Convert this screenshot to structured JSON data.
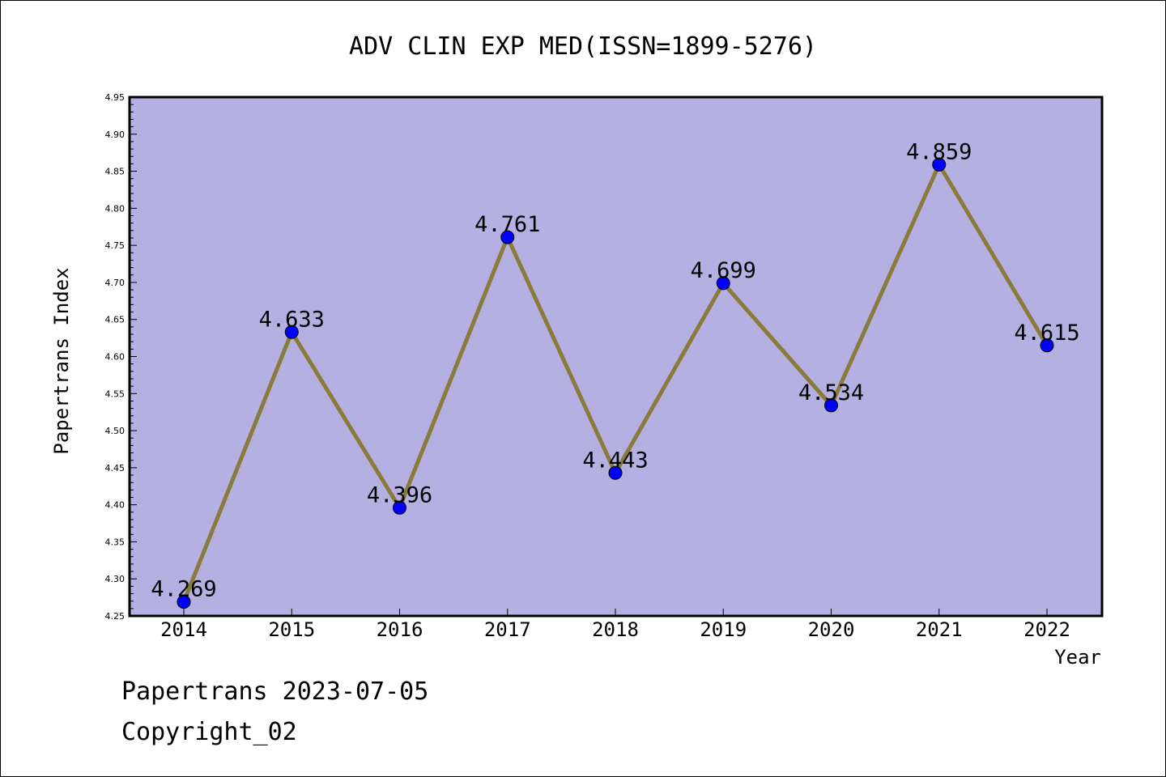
{
  "chart_data": {
    "type": "line",
    "title": "ADV CLIN EXP MED(ISSN=1899-5276)",
    "xlabel": "Year",
    "ylabel": "Papertrans Index",
    "categories": [
      "2014",
      "2015",
      "2016",
      "2017",
      "2018",
      "2019",
      "2020",
      "2021",
      "2022"
    ],
    "values": [
      4.269,
      4.633,
      4.396,
      4.761,
      4.443,
      4.699,
      4.534,
      4.859,
      4.615
    ],
    "data_labels": [
      "4.269",
      "4.633",
      "4.396",
      "4.761",
      "4.443",
      "4.699",
      "4.534",
      "4.859",
      "4.615"
    ],
    "ylim": [
      4.25,
      4.95
    ],
    "y_ticks": [
      "4.25",
      "4.30",
      "4.35",
      "4.40",
      "4.45",
      "4.50",
      "4.55",
      "4.60",
      "4.65",
      "4.70",
      "4.75",
      "4.80",
      "4.85",
      "4.90",
      "4.95"
    ],
    "grid": false,
    "legend": "none"
  },
  "footer": {
    "line1": "Papertrans 2023-07-05",
    "line2": "Copyright_02"
  },
  "colors": {
    "plot_background": "#b4b0e2",
    "line": "#8b7b3a",
    "marker": "#0000ff",
    "axis": "#000000"
  }
}
